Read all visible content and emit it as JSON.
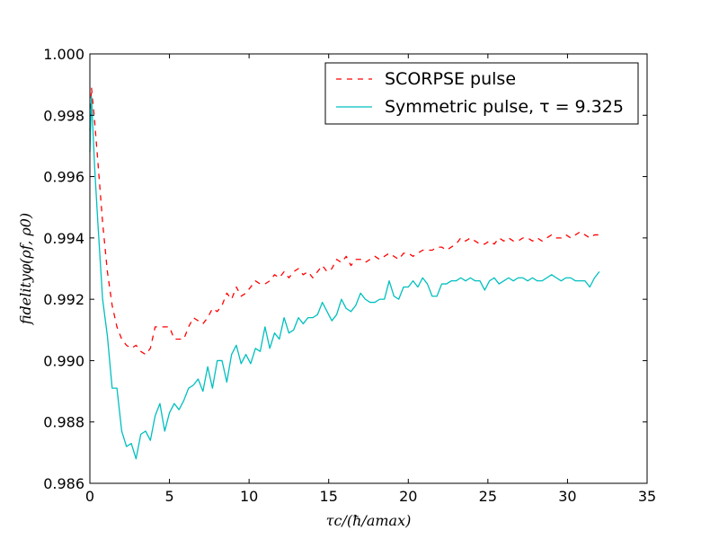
{
  "chart_data": {
    "type": "line",
    "xlabel": "τc/(ħ/amax)",
    "ylabel": "fidelityφ(ρf, ρ0)",
    "xlim": [
      0,
      35
    ],
    "ylim": [
      0.986,
      1.0
    ],
    "x_ticks": [
      "0",
      "5",
      "10",
      "15",
      "20",
      "25",
      "30",
      "35"
    ],
    "y_ticks": [
      "0.986",
      "0.988",
      "0.990",
      "0.992",
      "0.994",
      "0.996",
      "0.998",
      "1.000"
    ],
    "legend_position": "top-right",
    "grid": false,
    "series": [
      {
        "name": "SCORPSE pulse",
        "color": "#ff0000",
        "dash": "dashed",
        "x": [
          0.0,
          0.1,
          0.3,
          0.5,
          0.8,
          1.1,
          1.4,
          1.7,
          2.0,
          2.3,
          2.6,
          2.9,
          3.2,
          3.5,
          3.8,
          4.1,
          4.4,
          4.7,
          5.0,
          5.3,
          5.6,
          5.9,
          6.2,
          6.5,
          6.8,
          7.1,
          7.4,
          7.7,
          8.0,
          8.3,
          8.6,
          8.9,
          9.2,
          9.5,
          9.8,
          10.1,
          10.4,
          10.7,
          11.0,
          11.3,
          11.6,
          11.9,
          12.2,
          12.5,
          12.8,
          13.1,
          13.4,
          13.7,
          14.0,
          14.3,
          14.6,
          14.9,
          15.2,
          15.5,
          15.8,
          16.1,
          16.4,
          16.7,
          17.0,
          17.3,
          17.6,
          17.9,
          18.2,
          18.5,
          18.8,
          19.1,
          19.4,
          19.7,
          20.0,
          20.3,
          20.6,
          20.9,
          21.2,
          21.5,
          21.8,
          22.1,
          22.4,
          22.7,
          23.0,
          23.3,
          23.6,
          23.9,
          24.2,
          24.5,
          24.8,
          25.1,
          25.4,
          25.7,
          26.0,
          26.3,
          26.6,
          26.9,
          27.2,
          27.5,
          27.8,
          28.1,
          28.4,
          28.7,
          29.0,
          29.3,
          29.6,
          29.9,
          30.2,
          30.5,
          30.8,
          31.1,
          31.4,
          31.7,
          32.0
        ],
        "y": [
          0.9975,
          0.9989,
          0.9978,
          0.9965,
          0.9945,
          0.9929,
          0.9918,
          0.9911,
          0.9907,
          0.9905,
          0.9904,
          0.9905,
          0.9903,
          0.9902,
          0.9904,
          0.9911,
          0.9911,
          0.9911,
          0.9911,
          0.9907,
          0.9907,
          0.9907,
          0.9911,
          0.9914,
          0.9913,
          0.9912,
          0.9914,
          0.9917,
          0.9916,
          0.9918,
          0.9922,
          0.992,
          0.9924,
          0.9921,
          0.9922,
          0.9924,
          0.9926,
          0.9925,
          0.9925,
          0.9926,
          0.9928,
          0.9927,
          0.9929,
          0.9927,
          0.9929,
          0.993,
          0.9928,
          0.9929,
          0.9927,
          0.9929,
          0.9931,
          0.9929,
          0.993,
          0.9933,
          0.9932,
          0.9934,
          0.9931,
          0.9933,
          0.9933,
          0.9932,
          0.9933,
          0.9934,
          0.9933,
          0.9934,
          0.9935,
          0.9934,
          0.9933,
          0.9935,
          0.9935,
          0.9934,
          0.9935,
          0.9936,
          0.9936,
          0.9936,
          0.9937,
          0.9937,
          0.9936,
          0.9937,
          0.9938,
          0.994,
          0.9939,
          0.994,
          0.9939,
          0.9938,
          0.9938,
          0.9939,
          0.9938,
          0.994,
          0.9939,
          0.994,
          0.9939,
          0.9939,
          0.994,
          0.994,
          0.9939,
          0.994,
          0.9939,
          0.994,
          0.9941,
          0.994,
          0.994,
          0.9941,
          0.994,
          0.9941,
          0.9942,
          0.9941,
          0.994,
          0.9941,
          0.9941
        ]
      },
      {
        "name": "Symmetric pulse, τ = 9.325",
        "color": "#00bfbf",
        "dash": "solid",
        "x": [
          0.0,
          0.1,
          0.3,
          0.5,
          0.8,
          1.1,
          1.4,
          1.7,
          2.0,
          2.3,
          2.6,
          2.9,
          3.2,
          3.5,
          3.8,
          4.1,
          4.4,
          4.7,
          5.0,
          5.3,
          5.6,
          5.9,
          6.2,
          6.5,
          6.8,
          7.1,
          7.4,
          7.7,
          8.0,
          8.3,
          8.6,
          8.9,
          9.2,
          9.5,
          9.8,
          10.1,
          10.4,
          10.7,
          11.0,
          11.3,
          11.6,
          11.9,
          12.2,
          12.5,
          12.8,
          13.1,
          13.4,
          13.7,
          14.0,
          14.3,
          14.6,
          14.9,
          15.2,
          15.5,
          15.8,
          16.1,
          16.4,
          16.7,
          17.0,
          17.3,
          17.6,
          17.9,
          18.2,
          18.5,
          18.8,
          19.1,
          19.4,
          19.7,
          20.0,
          20.3,
          20.6,
          20.9,
          21.2,
          21.5,
          21.8,
          22.1,
          22.4,
          22.7,
          23.0,
          23.3,
          23.6,
          23.9,
          24.2,
          24.5,
          24.8,
          25.1,
          25.4,
          25.7,
          26.0,
          26.3,
          26.6,
          26.9,
          27.2,
          27.5,
          27.8,
          28.1,
          28.4,
          28.7,
          29.0,
          29.3,
          29.6,
          29.9,
          30.2,
          30.5,
          30.8,
          31.1,
          31.4,
          31.7,
          32.0
        ],
        "y": [
          0.9968,
          0.9986,
          0.9963,
          0.9945,
          0.992,
          0.9908,
          0.9891,
          0.9891,
          0.9877,
          0.9872,
          0.9873,
          0.9868,
          0.9876,
          0.9877,
          0.9874,
          0.9882,
          0.9886,
          0.9877,
          0.9883,
          0.9886,
          0.9884,
          0.9887,
          0.9891,
          0.9892,
          0.9894,
          0.989,
          0.9898,
          0.9891,
          0.99,
          0.99,
          0.9893,
          0.9902,
          0.9905,
          0.9899,
          0.9902,
          0.9899,
          0.9904,
          0.9903,
          0.9911,
          0.9904,
          0.9909,
          0.9907,
          0.9914,
          0.9909,
          0.991,
          0.9914,
          0.9912,
          0.9914,
          0.9914,
          0.9915,
          0.9919,
          0.9916,
          0.9913,
          0.9915,
          0.992,
          0.9917,
          0.9916,
          0.9918,
          0.9922,
          0.992,
          0.9919,
          0.9919,
          0.992,
          0.992,
          0.9926,
          0.9921,
          0.992,
          0.9924,
          0.9924,
          0.9926,
          0.9924,
          0.9927,
          0.9925,
          0.9921,
          0.9921,
          0.9925,
          0.9925,
          0.9926,
          0.9926,
          0.9927,
          0.9926,
          0.9927,
          0.9926,
          0.9926,
          0.9923,
          0.9926,
          0.9927,
          0.9925,
          0.9926,
          0.9927,
          0.9926,
          0.9927,
          0.9927,
          0.9926,
          0.9927,
          0.9926,
          0.9926,
          0.9927,
          0.9928,
          0.9927,
          0.9926,
          0.9927,
          0.9927,
          0.9926,
          0.9926,
          0.9926,
          0.9924,
          0.9927,
          0.9929
        ]
      }
    ]
  }
}
